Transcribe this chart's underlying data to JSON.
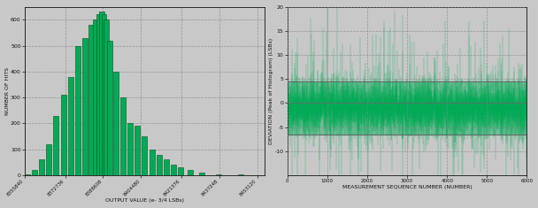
{
  "bg_color": "#c8c8c8",
  "plot_bg_color": "#c8c8c8",
  "bar_color": "#00aa55",
  "bar_edge_color": "#005522",
  "grid_color": "#888888",
  "text_color": "#111111",
  "hist_xlabel": "OUTPUT VALUE (e- 3/4 LSBs)",
  "hist_ylabel": "NUMBER OF HITS",
  "hist_xlim": [
    8355830,
    8456000
  ],
  "hist_ylim": [
    0,
    650
  ],
  "hist_yticks": [
    0,
    100,
    200,
    300,
    400,
    500,
    600
  ],
  "hist_xticks": [
    8355840,
    8372736,
    8388608,
    8404480,
    8421376,
    8437248,
    8453120
  ],
  "hist_xtick_labels": [
    "8355840",
    "8372736",
    "8388608",
    "8404480",
    "8421376",
    "8437248",
    "8453120"
  ],
  "hist_centers": [
    8357000,
    8360000,
    8363000,
    8366000,
    8369000,
    8372000,
    8375000,
    8378000,
    8381000,
    8383500,
    8385500,
    8387000,
    8388000,
    8389000,
    8390000,
    8391500,
    8394000,
    8397000,
    8400000,
    8403000,
    8406000,
    8409000,
    8412000,
    8415000,
    8418000,
    8421000,
    8425000,
    8430000,
    8437000,
    8446000
  ],
  "hist_counts": [
    5,
    20,
    60,
    120,
    230,
    310,
    380,
    500,
    530,
    580,
    600,
    620,
    630,
    620,
    600,
    520,
    400,
    300,
    200,
    190,
    150,
    100,
    80,
    60,
    40,
    30,
    20,
    10,
    5,
    2
  ],
  "ts_xlabel": "MEASUREMENT SEQUENCE NUMBER (NUMBER)",
  "ts_ylabel": "DEVIATION (Peak of Histogram) (LSBs)",
  "ts_xlim": [
    0,
    6000
  ],
  "ts_ylim": [
    -15,
    20
  ],
  "ts_yticks": [
    -10,
    -5,
    0,
    5,
    10,
    15,
    20
  ],
  "ts_xticks": [
    0,
    1000,
    2000,
    3000,
    4000,
    5000,
    6000
  ],
  "ts_xtick_labels": [
    "0",
    "1000",
    "2000",
    "3000",
    "4000",
    "5000",
    "6000"
  ],
  "ts_band_low": -6.5,
  "ts_band_high": 4.5,
  "ts_num_points": 6000,
  "ts_noise_std": 3.0,
  "ts_mean": -1.0,
  "random_seed": 42,
  "fig_width": 6.08,
  "fig_height": 2.35,
  "dpi": 100
}
